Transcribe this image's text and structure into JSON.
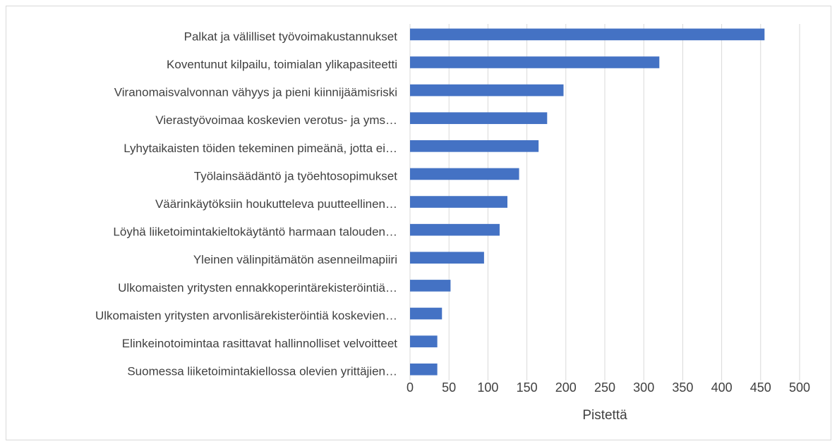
{
  "chart_data": {
    "type": "bar",
    "orientation": "horizontal",
    "categories": [
      "Palkat ja välilliset työvoimakustannukset",
      "Koventunut kilpailu, toimialan ylikapasiteetti",
      "Viranomaisvalvonnan vähyys ja pieni kiinnijäämisriski",
      "Vierastyövoimaa koskevien verotus- ja yms…",
      "Lyhytaikaisten töiden tekeminen pimeänä, jotta ei…",
      "Työlainsäädäntö ja työehtosopimukset",
      "Väärinkäytöksiin houkutteleva puutteellinen…",
      "Löyhä liiketoimintakieltokäytäntö harmaan talouden…",
      "Yleinen välinpitämätön asenneilmapiiri",
      "Ulkomaisten yritysten ennakkoperintärekisteröintiä…",
      "Ulkomaisten yritysten arvonlisärekisteröintiä koskevien…",
      "Elinkeinotoimintaa rasittavat hallinnolliset velvoitteet",
      "Suomessa liiketoimintakiellossa olevien yrittäjien…"
    ],
    "values": [
      455,
      320,
      197,
      176,
      165,
      140,
      125,
      115,
      95,
      52,
      41,
      35,
      35
    ],
    "color": "#4472c4",
    "xlabel": "Pistettä",
    "xlim": [
      0,
      500
    ],
    "xticks": [
      0,
      50,
      100,
      150,
      200,
      250,
      300,
      350,
      400,
      450,
      500
    ],
    "grid": true
  }
}
